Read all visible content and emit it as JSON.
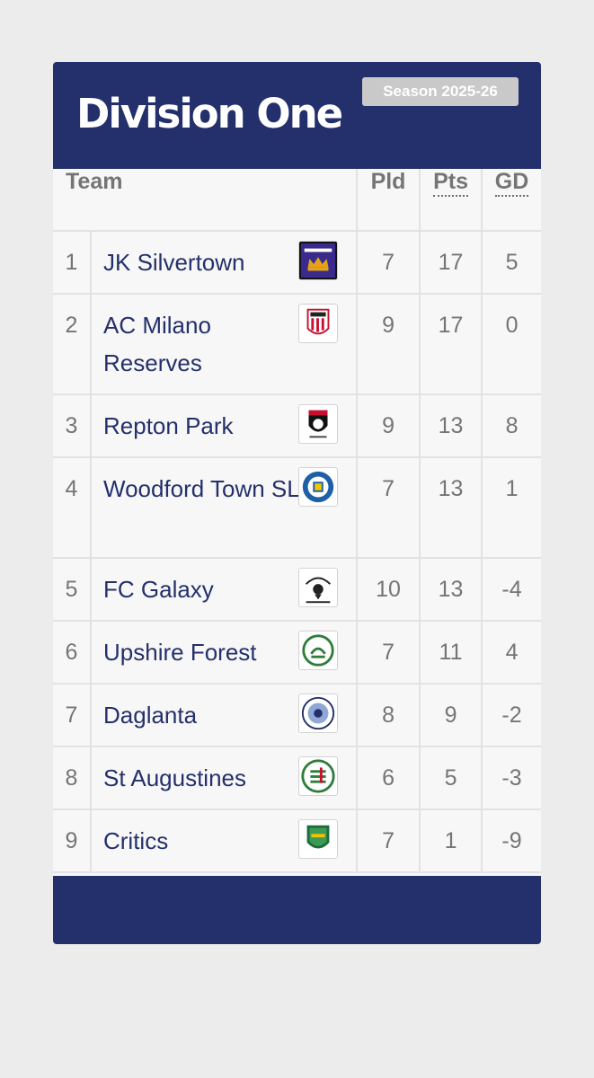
{
  "header": {
    "title": "Division One",
    "season": "Season 2025-26"
  },
  "columns": {
    "team": "Team",
    "played": "Pld",
    "points": "Pts",
    "goal_difference": "GD"
  },
  "rows": [
    {
      "pos": "1",
      "team": "JK Silvertown",
      "pld": "7",
      "pts": "17",
      "gd": "5",
      "crest": "jk-silvertown-crest-icon"
    },
    {
      "pos": "2",
      "team": "AC Milano Reserves",
      "pld": "9",
      "pts": "17",
      "gd": "0",
      "crest": "ac-milano-crest-icon"
    },
    {
      "pos": "3",
      "team": "Repton Park",
      "pld": "9",
      "pts": "13",
      "gd": "8",
      "crest": "repton-park-crest-icon"
    },
    {
      "pos": "4",
      "team": "Woodford Town SL",
      "pld": "7",
      "pts": "13",
      "gd": "1",
      "crest": "woodford-town-crest-icon"
    },
    {
      "pos": "5",
      "team": "FC Galaxy",
      "pld": "10",
      "pts": "13",
      "gd": "-4",
      "crest": "fc-galaxy-crest-icon"
    },
    {
      "pos": "6",
      "team": "Upshire Forest",
      "pld": "7",
      "pts": "11",
      "gd": "4",
      "crest": "upshire-forest-crest-icon"
    },
    {
      "pos": "7",
      "team": "Daglanta",
      "pld": "8",
      "pts": "9",
      "gd": "-2",
      "crest": "daglanta-crest-icon"
    },
    {
      "pos": "8",
      "team": "St Augustines",
      "pld": "6",
      "pts": "5",
      "gd": "-3",
      "crest": "st-augustines-crest-icon"
    },
    {
      "pos": "9",
      "team": "Critics",
      "pld": "7",
      "pts": "1",
      "gd": "-9",
      "crest": "critics-crest-icon"
    }
  ],
  "colors": {
    "brand_navy": "#24306b",
    "team_text": "#24306b",
    "badge_bg": "#c9c9c9"
  }
}
